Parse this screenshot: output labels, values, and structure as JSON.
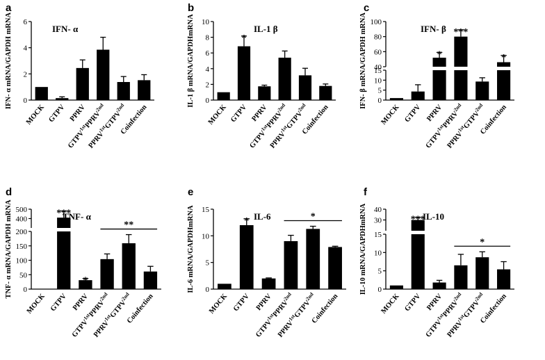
{
  "chart_data": [
    {
      "panel": "a",
      "title": "IFN- α",
      "type": "bar",
      "ylabel": "IFN- α mRNA/GAPDH mRNA",
      "ylim": [
        0,
        6
      ],
      "ticks": [
        0,
        2,
        4,
        6
      ],
      "categories": [
        "MOCK",
        "GTPV",
        "PPRV",
        "GTPV1stPPRV2nd",
        "PPRV1stGTPV2nd",
        "Coinfection"
      ],
      "values": [
        1.0,
        0.15,
        2.45,
        3.85,
        1.38,
        1.52
      ],
      "errors": [
        0.0,
        0.1,
        0.62,
        0.95,
        0.42,
        0.42
      ],
      "significance": [
        "",
        "",
        "",
        "",
        "",
        ""
      ]
    },
    {
      "panel": "b",
      "title": "IL-1 β",
      "type": "bar",
      "ylabel": "IL-1 β mRNA/GAPDHmRNA",
      "ylim": [
        0,
        10
      ],
      "ticks": [
        0,
        2,
        4,
        6,
        8,
        10
      ],
      "categories": [
        "MOCK",
        "GTPV",
        "PPRV",
        "GTPV1stPPRV2nd",
        "PPRV1stGTPV2nd",
        "Coinfection"
      ],
      "values": [
        1.0,
        6.85,
        1.75,
        5.4,
        3.15,
        1.8
      ],
      "errors": [
        0.0,
        1.3,
        0.15,
        0.85,
        0.9,
        0.25
      ],
      "significance": [
        "",
        "*",
        "",
        "",
        "",
        ""
      ]
    },
    {
      "panel": "c",
      "title": "IFN- β",
      "type": "bar",
      "ylabel": "IFN- β mRNA/GAPDH mRNA",
      "broken_axis": {
        "lower": [
          0,
          15
        ],
        "upper": [
          40,
          100
        ]
      },
      "ticks": [
        0,
        5,
        10,
        15,
        40,
        60,
        80,
        100
      ],
      "categories": [
        "MOCK",
        "GTPV",
        "PPRV",
        "GTPV1stPPRV2nd",
        "PPRV1stGTPV2nd",
        "Coinfection"
      ],
      "values": [
        1.0,
        4.3,
        52,
        80,
        9.3,
        46
      ],
      "errors": [
        0.0,
        3.4,
        7,
        9,
        1.9,
        9
      ],
      "significance": [
        "",
        "",
        "*",
        "***",
        "",
        "*"
      ]
    },
    {
      "panel": "d",
      "title": "TNF- α",
      "type": "bar",
      "ylabel": "TNF- α mRNA/GAPDH mRNA",
      "broken_axis": {
        "lower": [
          0,
          200
        ],
        "upper": [
          300,
          500
        ]
      },
      "ticks": [
        0,
        50,
        100,
        150,
        200,
        400,
        500
      ],
      "categories": [
        "MOCK",
        "GTPV",
        "PPRV",
        "GTPV1stPPRV2nd",
        "PPRV1stGTPV2nd",
        "Coinfection"
      ],
      "values": [
        0.0,
        410,
        31,
        104,
        159,
        61
      ],
      "errors": [
        0.0,
        70,
        6,
        18,
        30,
        18
      ],
      "significance": [
        "",
        "***",
        "*",
        "",
        "",
        ""
      ],
      "bracket": {
        "from": "GTPV1stPPRV2nd",
        "to": "Coinfection",
        "label": "**"
      }
    },
    {
      "panel": "e",
      "title": "IL-6",
      "type": "bar",
      "ylabel": "IL-6 mRNA/GAPDHmRNA",
      "ylim": [
        0,
        15
      ],
      "ticks": [
        0,
        5,
        10,
        15
      ],
      "categories": [
        "MOCK",
        "GTPV",
        "PPRV",
        "GTPV1stPPRV2nd",
        "PPRV1stGTPV2nd",
        "Coinfection"
      ],
      "values": [
        1.0,
        12.0,
        2.0,
        9.0,
        11.3,
        7.9
      ],
      "errors": [
        0.0,
        1.2,
        0.1,
        1.1,
        0.5,
        0.15
      ],
      "significance": [
        "",
        "*",
        "",
        "",
        "",
        ""
      ],
      "bracket": {
        "from": "GTPV1stPPRV2nd",
        "to": "Coinfection",
        "label": "*"
      }
    },
    {
      "panel": "f",
      "title": "IL-10",
      "type": "bar",
      "ylabel": "IL-10 mRNA/GAPDHmRNA",
      "broken_axis": {
        "lower": [
          0,
          15
        ],
        "upper": [
          20,
          40
        ]
      },
      "ticks": [
        0,
        5,
        10,
        15,
        30,
        40
      ],
      "categories": [
        "MOCK",
        "GTPV",
        "PPRV",
        "GTPV1stPPRV2nd",
        "PPRV1stGTPV2nd",
        "Coinfection"
      ],
      "values": [
        1.0,
        30,
        1.8,
        6.5,
        8.7,
        5.4
      ],
      "errors": [
        0.0,
        2.5,
        0.6,
        3.0,
        1.5,
        2.1
      ],
      "significance": [
        "",
        "***",
        "",
        "",
        "",
        ""
      ],
      "bracket": {
        "from": "GTPV1stPPRV2nd",
        "to": "Coinfection",
        "label": "*"
      }
    }
  ]
}
